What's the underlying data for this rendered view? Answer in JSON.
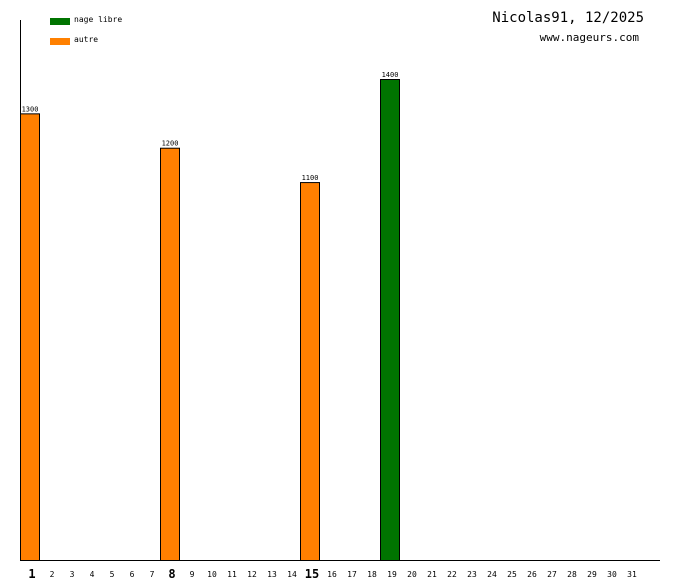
{
  "chart_data": {
    "type": "bar",
    "title": "Nicolas91, 12/2025",
    "subtitle": "www.nageurs.com",
    "categories": [
      "1",
      "2",
      "3",
      "4",
      "5",
      "6",
      "7",
      "8",
      "9",
      "10",
      "11",
      "12",
      "13",
      "14",
      "15",
      "16",
      "17",
      "18",
      "19",
      "20",
      "21",
      "22",
      "23",
      "24",
      "25",
      "26",
      "27",
      "28",
      "29",
      "30",
      "31"
    ],
    "emphasized_categories": [
      "1",
      "8",
      "15"
    ],
    "series": [
      {
        "name": "nage libre",
        "color": "#007400",
        "values": [
          0,
          0,
          0,
          0,
          0,
          0,
          0,
          0,
          0,
          0,
          0,
          0,
          0,
          0,
          0,
          0,
          0,
          0,
          1400,
          0,
          0,
          0,
          0,
          0,
          0,
          0,
          0,
          0,
          0,
          0,
          0
        ]
      },
      {
        "name": "autre",
        "color": "#ff8000",
        "values": [
          1300,
          0,
          0,
          0,
          0,
          0,
          0,
          1200,
          0,
          0,
          0,
          0,
          0,
          0,
          1100,
          0,
          0,
          0,
          0,
          0,
          0,
          0,
          0,
          0,
          0,
          0,
          0,
          0,
          0,
          0,
          0
        ]
      }
    ],
    "ylim": [
      0,
      1400
    ],
    "legend_position": "top-left",
    "grid": false
  }
}
